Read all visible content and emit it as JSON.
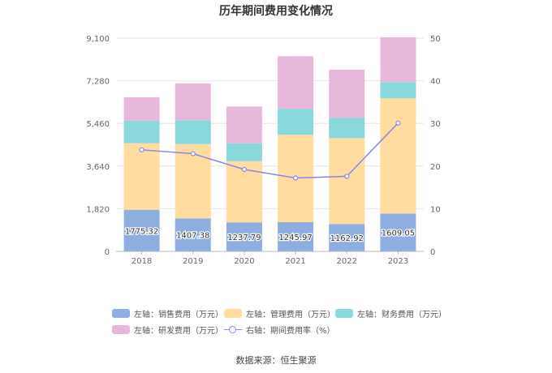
{
  "chart_data": {
    "type": "bar",
    "title": "历年期间费用变化情况",
    "categories": [
      "2018",
      "2019",
      "2020",
      "2021",
      "2022",
      "2023"
    ],
    "left_axis": {
      "ylim": [
        0,
        9100
      ],
      "ticks": [
        "0",
        "1,820",
        "3,640",
        "5,460",
        "7,280",
        "9,100"
      ]
    },
    "right_axis": {
      "ylim": [
        0,
        50
      ],
      "ticks": [
        "0",
        "10",
        "20",
        "30",
        "40",
        "50"
      ]
    },
    "series": [
      {
        "name": "左轴：销售费用（万元）",
        "type": "stacked-bar",
        "color": "#8eaee0",
        "values": [
          1775.32,
          1407.38,
          1237.79,
          1245.97,
          1162.92,
          1609.05
        ],
        "labels": [
          "1775.32",
          "1407.38",
          "1237.79",
          "1245.97",
          "1162.92",
          "1609.05"
        ]
      },
      {
        "name": "左轴：管理费用（万元）",
        "type": "stacked-bar",
        "color": "#ffdca0",
        "values": [
          2840,
          3170,
          2610,
          3730,
          3670,
          4920
        ]
      },
      {
        "name": "左轴：财务费用（万元）",
        "type": "stacked-bar",
        "color": "#88d8dc",
        "values": [
          960,
          1020,
          760,
          1110,
          860,
          690
        ]
      },
      {
        "name": "左轴：研发费用（万元）",
        "type": "stacked-bar",
        "color": "#e8b8da",
        "values": [
          1000,
          1570,
          1570,
          2240,
          2060,
          1920
        ]
      },
      {
        "name": "右轴：期间费用率（%）",
        "type": "line",
        "color": "#8a86e8",
        "values": [
          23.8,
          22.9,
          19.2,
          17.2,
          17.6,
          30.1
        ]
      }
    ],
    "grid": true,
    "legend_position": "bottom"
  },
  "source": "数据来源：恒生聚源"
}
